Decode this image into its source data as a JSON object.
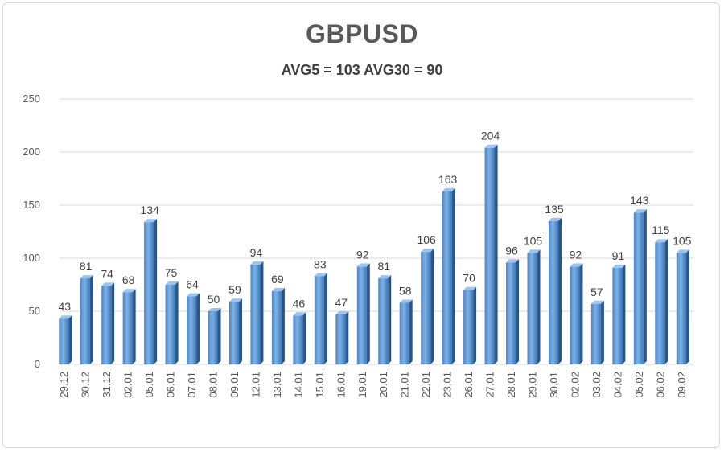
{
  "chart_data": {
    "type": "bar",
    "title": "GBPUSD",
    "subtitle": "AVG5 = 103 AVG30 = 90",
    "categories": [
      "29.12",
      "30.12",
      "31.12",
      "02.01",
      "05.01",
      "06.01",
      "07.01",
      "08.01",
      "09.01",
      "12.01",
      "13.01",
      "14.01",
      "15.01",
      "16.01",
      "19.01",
      "20.01",
      "21.01",
      "22.01",
      "23.01",
      "26.01",
      "27.01",
      "28.01",
      "29.01",
      "30.01",
      "02.02",
      "03.02",
      "04.02",
      "05.02",
      "06.02",
      "09.02"
    ],
    "values": [
      43,
      81,
      74,
      68,
      134,
      75,
      64,
      50,
      59,
      94,
      69,
      46,
      83,
      47,
      92,
      81,
      58,
      106,
      163,
      70,
      204,
      96,
      105,
      135,
      92,
      57,
      91,
      143,
      115,
      105
    ],
    "ylim": [
      0,
      250
    ],
    "yticks": [
      0,
      50,
      100,
      150,
      200,
      250
    ],
    "grid": true,
    "bar_color": "#5b9bd5",
    "xlabel": "",
    "ylabel": ""
  }
}
